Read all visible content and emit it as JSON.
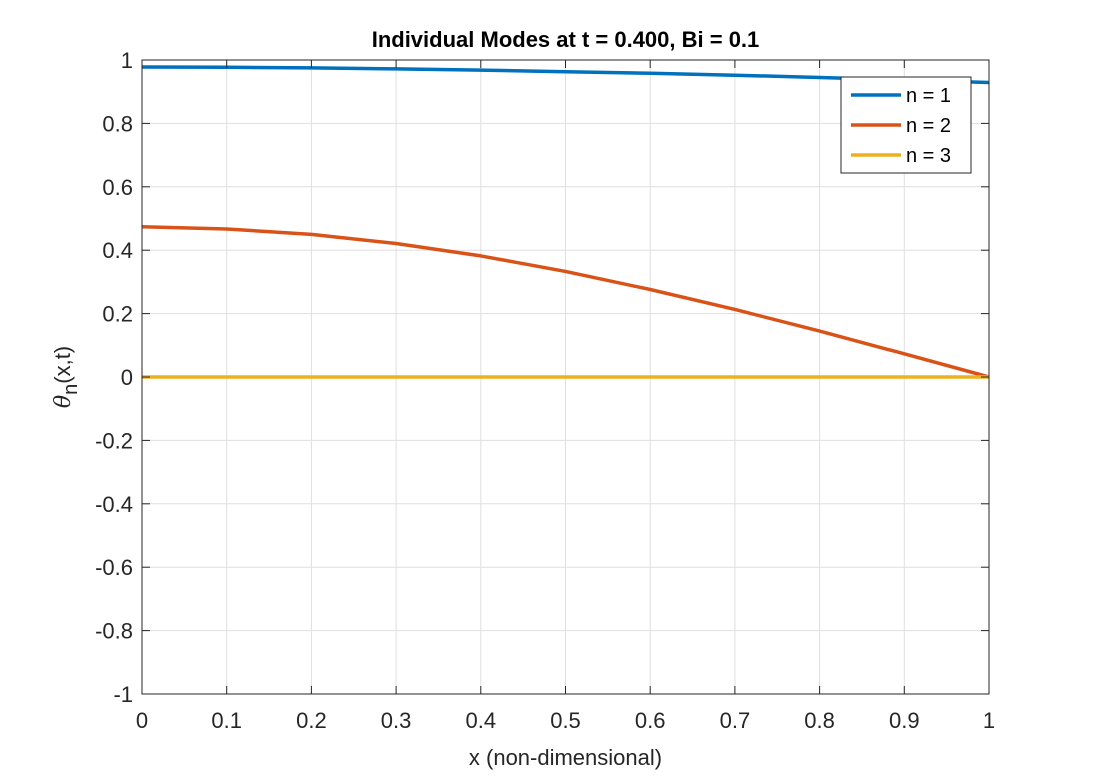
{
  "chart_data": {
    "type": "line",
    "title": "Individual Modes at t = 0.400, Bi = 0.1",
    "xlabel": "x (non-dimensional)",
    "ylabel": {
      "main": "θ",
      "sub": "n",
      "rest": "(x,t)"
    },
    "xlim": [
      0,
      1
    ],
    "ylim": [
      -1,
      1
    ],
    "xticks": [
      0,
      0.1,
      0.2,
      0.3,
      0.4,
      0.5,
      0.6,
      0.7,
      0.8,
      0.9,
      1
    ],
    "xtick_labels": [
      "0",
      "0.1",
      "0.2",
      "0.3",
      "0.4",
      "0.5",
      "0.6",
      "0.7",
      "0.8",
      "0.9",
      "1"
    ],
    "yticks": [
      -1,
      -0.8,
      -0.6,
      -0.4,
      -0.2,
      0,
      0.2,
      0.4,
      0.6,
      0.8,
      1
    ],
    "ytick_labels": [
      "-1",
      "-0.8",
      "-0.6",
      "-0.4",
      "-0.2",
      "0",
      "0.2",
      "0.4",
      "0.6",
      "0.8",
      "1"
    ],
    "grid": true,
    "legend_position": "top-right",
    "x": [
      0,
      0.1,
      0.2,
      0.3,
      0.4,
      0.5,
      0.6,
      0.7,
      0.8,
      0.9,
      1.0
    ],
    "series": [
      {
        "name": "n = 1",
        "color": "#0072BD",
        "values": [
          0.978,
          0.977,
          0.975,
          0.972,
          0.968,
          0.963,
          0.958,
          0.952,
          0.945,
          0.937,
          0.929
        ]
      },
      {
        "name": "n = 2",
        "color": "#D95319",
        "values": [
          0.474,
          0.467,
          0.45,
          0.421,
          0.382,
          0.333,
          0.276,
          0.213,
          0.145,
          0.073,
          0.0
        ]
      },
      {
        "name": "n = 3",
        "color": "#EDB120",
        "values": [
          0.0,
          0.0,
          0.0,
          0.0,
          0.0,
          0.0,
          0.0,
          0.0,
          0.0,
          0.0,
          0.0
        ]
      }
    ]
  }
}
